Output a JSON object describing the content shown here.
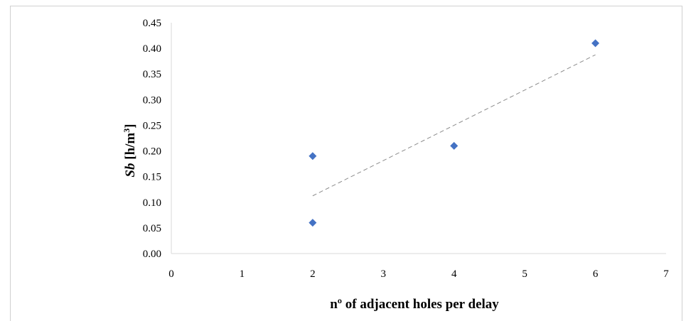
{
  "chart_data": {
    "type": "scatter",
    "xlabel_prefix": "nº",
    "xlabel_rest": " of adjacent holes per delay",
    "ylabel_var": "Sb",
    "ylabel_unit": " [h/m",
    "ylabel_sup": "3",
    "ylabel_close": "]",
    "xlim": [
      0,
      7
    ],
    "ylim": [
      0,
      0.45
    ],
    "x_ticks": [
      "0",
      "1",
      "2",
      "3",
      "4",
      "5",
      "6",
      "7"
    ],
    "y_ticks": [
      "0.00",
      "0.05",
      "0.10",
      "0.15",
      "0.20",
      "0.25",
      "0.30",
      "0.35",
      "0.40",
      "0.45"
    ],
    "grid": false,
    "legend": "none",
    "series": [
      {
        "marker": "diamond",
        "color": "#4472c4",
        "points": [
          {
            "x": 2,
            "y": 0.06
          },
          {
            "x": 2,
            "y": 0.19
          },
          {
            "x": 4,
            "y": 0.21
          },
          {
            "x": 6,
            "y": 0.41
          }
        ]
      }
    ],
    "trendline": {
      "type": "linear",
      "style": "dashed",
      "color": "#8c8c8c",
      "x_range": [
        2,
        6
      ],
      "y_range": [
        0.1125,
        0.3875
      ]
    }
  }
}
